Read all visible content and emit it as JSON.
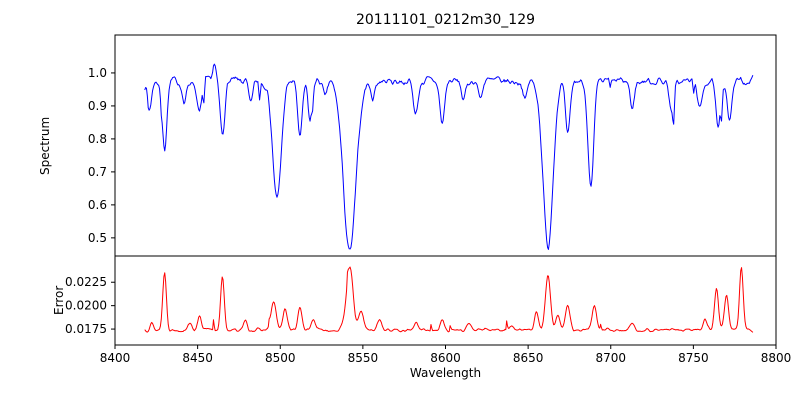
{
  "figure": {
    "title": "20111101_0212m30_129",
    "xlabel": "Wavelength",
    "background": "#ffffff",
    "axis_color": "#000000"
  },
  "axes": {
    "xlim": [
      8400,
      8800
    ],
    "xticks": [
      8400,
      8450,
      8500,
      8550,
      8600,
      8650,
      8700,
      8750,
      8800
    ],
    "xtick_labels": [
      "8400",
      "8450",
      "8500",
      "8550",
      "8600",
      "8650",
      "8700",
      "8750",
      "8800"
    ]
  },
  "chart_data": [
    {
      "type": "line",
      "panel": "spectrum",
      "title": "20111101_0212m30_129",
      "ylabel": "Spectrum",
      "color": "#0000ff",
      "xlim": [
        8400,
        8800
      ],
      "ylim": [
        0.445,
        1.115
      ],
      "x_range": [
        8418,
        8786
      ],
      "yticks": [
        1.0,
        0.9,
        0.8,
        0.7,
        0.6,
        0.5
      ],
      "ytick_labels": [
        "1.0",
        "0.9",
        "0.8",
        "0.7",
        "0.6",
        "0.5"
      ],
      "continuum": 0.975,
      "noise_amplitude": 0.014,
      "absorption_lines": [
        [
          8421,
          0.08,
          1.2
        ],
        [
          8430,
          0.2,
          1.4
        ],
        [
          8442,
          0.07,
          1.2
        ],
        [
          8451,
          0.1,
          1.4
        ],
        [
          8460,
          -0.05,
          1.0
        ],
        [
          8465,
          0.16,
          1.4
        ],
        [
          8482,
          0.07,
          1.2
        ],
        [
          8498,
          0.36,
          2.6
        ],
        [
          8512,
          0.17,
          1.4
        ],
        [
          8518,
          0.12,
          1.2
        ],
        [
          8527,
          0.05,
          1.2
        ],
        [
          8542,
          0.52,
          3.8
        ],
        [
          8556,
          0.05,
          1.2
        ],
        [
          8582,
          0.1,
          1.4
        ],
        [
          8598,
          0.13,
          1.4
        ],
        [
          8611,
          0.06,
          1.2
        ],
        [
          8621,
          0.05,
          1.2
        ],
        [
          8648,
          0.06,
          1.2
        ],
        [
          8662,
          0.5,
          3.0
        ],
        [
          8674,
          0.17,
          1.4
        ],
        [
          8688,
          0.33,
          1.7
        ],
        [
          8713,
          0.08,
          1.3
        ],
        [
          8737,
          0.1,
          1.3
        ],
        [
          8754,
          0.09,
          1.3
        ],
        [
          8765,
          0.15,
          1.4
        ],
        [
          8772,
          0.12,
          1.3
        ]
      ]
    },
    {
      "type": "line",
      "panel": "error",
      "ylabel": "Error",
      "color": "#ff0000",
      "xlim": [
        8400,
        8800
      ],
      "ylim": [
        0.0158,
        0.0253
      ],
      "x_range": [
        8418,
        8786
      ],
      "yticks": [
        0.0225,
        0.02,
        0.0175
      ],
      "ytick_labels": [
        "0.0225",
        "0.0200",
        "0.0175"
      ],
      "baseline": 0.0174,
      "noise_amplitude": 0.00022,
      "peaks": [
        [
          8422,
          0.0008,
          1.0
        ],
        [
          8430,
          0.0062,
          1.1
        ],
        [
          8445,
          0.0008,
          1.1
        ],
        [
          8451,
          0.0015,
          1.1
        ],
        [
          8465,
          0.0056,
          1.1
        ],
        [
          8479,
          0.001,
          1.0
        ],
        [
          8496,
          0.003,
          1.5
        ],
        [
          8503,
          0.0022,
          1.3
        ],
        [
          8512,
          0.0024,
          1.2
        ],
        [
          8520,
          0.0012,
          1.2
        ],
        [
          8542,
          0.0068,
          2.0
        ],
        [
          8549,
          0.002,
          1.4
        ],
        [
          8560,
          0.0012,
          1.2
        ],
        [
          8582,
          0.0007,
          1.2
        ],
        [
          8598,
          0.001,
          1.2
        ],
        [
          8614,
          0.0007,
          1.2
        ],
        [
          8640,
          0.0006,
          1.2
        ],
        [
          8655,
          0.0018,
          1.2
        ],
        [
          8662,
          0.006,
          1.5
        ],
        [
          8668,
          0.0018,
          1.2
        ],
        [
          8674,
          0.0028,
          1.3
        ],
        [
          8690,
          0.0027,
          1.3
        ],
        [
          8713,
          0.0007,
          1.2
        ],
        [
          8757,
          0.001,
          1.2
        ],
        [
          8764,
          0.0044,
          1.2
        ],
        [
          8770,
          0.0036,
          1.2
        ],
        [
          8779,
          0.0068,
          1.1
        ]
      ]
    }
  ]
}
